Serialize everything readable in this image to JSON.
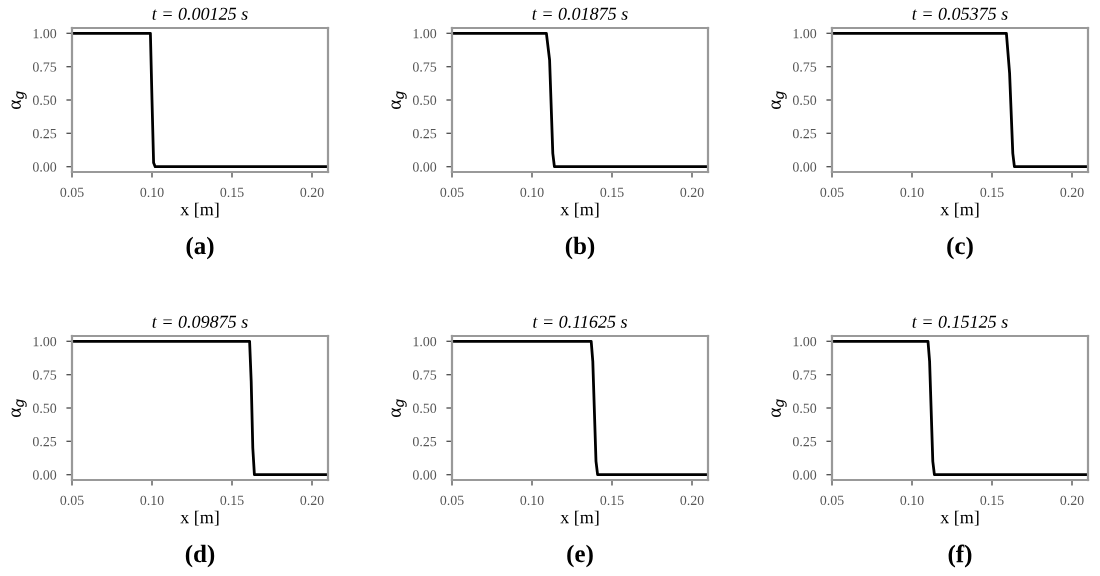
{
  "chart_data": [
    {
      "type": "line",
      "title": "t = 0.00125 s",
      "xlabel": "x [m]",
      "ylabel": "α$_{g}$",
      "annotations": [
        "(a)"
      ],
      "x": [
        0.05,
        0.099,
        0.1,
        0.101,
        0.102,
        0.21
      ],
      "series": [
        {
          "color": "#000000",
          "values": [
            1,
            1,
            0.5,
            0.03,
            0,
            0
          ]
        }
      ],
      "xlim": [
        0.05,
        0.21
      ],
      "xticks": [
        {
          "value": 0.05,
          "label": "0.05"
        },
        {
          "value": 0.1,
          "label": "0.10"
        },
        {
          "value": 0.15,
          "label": "0.15"
        },
        {
          "value": 0.2,
          "label": "0.20"
        }
      ],
      "ylim": [
        -0.04,
        1.04
      ],
      "yticks": [
        {
          "value": 0,
          "label": "0.00"
        },
        {
          "value": 0.25,
          "label": "0.25"
        },
        {
          "value": 0.5,
          "label": "0.50"
        },
        {
          "value": 0.75,
          "label": "0.75"
        },
        {
          "value": 1,
          "label": "1.00"
        }
      ],
      "grid": false
    },
    {
      "type": "line",
      "title": "t = 0.01875 s",
      "xlabel": "x [m]",
      "ylabel": "α$_{g}$",
      "annotations": [
        "(b)"
      ],
      "x": [
        0.05,
        0.109,
        0.111,
        0.113,
        0.114,
        0.21
      ],
      "series": [
        {
          "color": "#000000",
          "values": [
            1,
            1,
            0.8,
            0.1,
            0,
            0
          ]
        }
      ],
      "xlim": [
        0.05,
        0.21
      ],
      "xticks": [
        {
          "value": 0.05,
          "label": "0.05"
        },
        {
          "value": 0.1,
          "label": "0.10"
        },
        {
          "value": 0.15,
          "label": "0.15"
        },
        {
          "value": 0.2,
          "label": "0.20"
        }
      ],
      "ylim": [
        -0.04,
        1.04
      ],
      "yticks": [
        {
          "value": 0,
          "label": "0.00"
        },
        {
          "value": 0.25,
          "label": "0.25"
        },
        {
          "value": 0.5,
          "label": "0.50"
        },
        {
          "value": 0.75,
          "label": "0.75"
        },
        {
          "value": 1,
          "label": "1.00"
        }
      ],
      "grid": false
    },
    {
      "type": "line",
      "title": "t = 0.05375 s",
      "xlabel": "x [m]",
      "ylabel": "α$_{g}$",
      "annotations": [
        "(c)"
      ],
      "x": [
        0.05,
        0.159,
        0.161,
        0.163,
        0.164,
        0.21
      ],
      "series": [
        {
          "color": "#000000",
          "values": [
            1,
            1,
            0.7,
            0.1,
            0,
            0
          ]
        }
      ],
      "xlim": [
        0.05,
        0.21
      ],
      "xticks": [
        {
          "value": 0.05,
          "label": "0.05"
        },
        {
          "value": 0.1,
          "label": "0.10"
        },
        {
          "value": 0.15,
          "label": "0.15"
        },
        {
          "value": 0.2,
          "label": "0.20"
        }
      ],
      "ylim": [
        -0.04,
        1.04
      ],
      "yticks": [
        {
          "value": 0,
          "label": "0.00"
        },
        {
          "value": 0.25,
          "label": "0.25"
        },
        {
          "value": 0.5,
          "label": "0.50"
        },
        {
          "value": 0.75,
          "label": "0.75"
        },
        {
          "value": 1,
          "label": "1.00"
        }
      ],
      "grid": false
    },
    {
      "type": "line",
      "title": "t = 0.09875 s",
      "xlabel": "x [m]",
      "ylabel": "α$_{g}$",
      "annotations": [
        "(d)"
      ],
      "x": [
        0.05,
        0.161,
        0.162,
        0.163,
        0.164,
        0.21
      ],
      "series": [
        {
          "color": "#000000",
          "values": [
            1,
            1,
            0.7,
            0.2,
            0,
            0
          ]
        }
      ],
      "xlim": [
        0.05,
        0.21
      ],
      "xticks": [
        {
          "value": 0.05,
          "label": "0.05"
        },
        {
          "value": 0.1,
          "label": "0.10"
        },
        {
          "value": 0.15,
          "label": "0.15"
        },
        {
          "value": 0.2,
          "label": "0.20"
        }
      ],
      "ylim": [
        -0.04,
        1.04
      ],
      "yticks": [
        {
          "value": 0,
          "label": "0.00"
        },
        {
          "value": 0.25,
          "label": "0.25"
        },
        {
          "value": 0.5,
          "label": "0.50"
        },
        {
          "value": 0.75,
          "label": "0.75"
        },
        {
          "value": 1,
          "label": "1.00"
        }
      ],
      "grid": false
    },
    {
      "type": "line",
      "title": "t = 0.11625 s",
      "xlabel": "x [m]",
      "ylabel": "α$_{g}$",
      "annotations": [
        "(e)"
      ],
      "x": [
        0.05,
        0.137,
        0.138,
        0.14,
        0.141,
        0.21
      ],
      "series": [
        {
          "color": "#000000",
          "values": [
            1,
            1,
            0.85,
            0.1,
            0,
            0
          ]
        }
      ],
      "xlim": [
        0.05,
        0.21
      ],
      "xticks": [
        {
          "value": 0.05,
          "label": "0.05"
        },
        {
          "value": 0.1,
          "label": "0.10"
        },
        {
          "value": 0.15,
          "label": "0.15"
        },
        {
          "value": 0.2,
          "label": "0.20"
        }
      ],
      "ylim": [
        -0.04,
        1.04
      ],
      "yticks": [
        {
          "value": 0,
          "label": "0.00"
        },
        {
          "value": 0.25,
          "label": "0.25"
        },
        {
          "value": 0.5,
          "label": "0.50"
        },
        {
          "value": 0.75,
          "label": "0.75"
        },
        {
          "value": 1,
          "label": "1.00"
        }
      ],
      "grid": false
    },
    {
      "type": "line",
      "title": "t = 0.15125 s",
      "xlabel": "x [m]",
      "ylabel": "α$_{g}$",
      "annotations": [
        "(f)"
      ],
      "x": [
        0.05,
        0.11,
        0.111,
        0.113,
        0.114,
        0.21
      ],
      "series": [
        {
          "color": "#000000",
          "values": [
            1,
            1,
            0.85,
            0.1,
            0,
            0
          ]
        }
      ],
      "xlim": [
        0.05,
        0.21
      ],
      "xticks": [
        {
          "value": 0.05,
          "label": "0.05"
        },
        {
          "value": 0.1,
          "label": "0.10"
        },
        {
          "value": 0.15,
          "label": "0.15"
        },
        {
          "value": 0.2,
          "label": "0.20"
        }
      ],
      "ylim": [
        -0.04,
        1.04
      ],
      "yticks": [
        {
          "value": 0,
          "label": "0.00"
        },
        {
          "value": 0.25,
          "label": "0.25"
        },
        {
          "value": 0.5,
          "label": "0.50"
        },
        {
          "value": 0.75,
          "label": "0.75"
        },
        {
          "value": 1,
          "label": "1.00"
        }
      ],
      "grid": false
    }
  ]
}
